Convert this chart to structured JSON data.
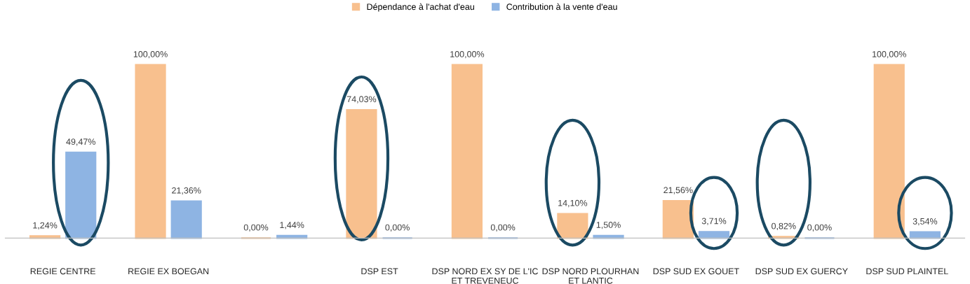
{
  "chart_data": {
    "type": "bar",
    "categories": [
      "REGIE CENTRE",
      "REGIE EX BOEGAN",
      null,
      "DSP EST",
      "DSP NORD EX SY DE L'IC\nET TREVENEUC",
      "DSP NORD PLOURHAN\nET LANTIC",
      "DSP SUD EX GOUET",
      "DSP SUD EX GUERCY",
      "DSP SUD PLAINTEL"
    ],
    "series": [
      {
        "name": "Dépendance à l'achat d'eau",
        "color": "#f8c08e",
        "values": [
          1.24,
          100,
          0,
          74.03,
          100,
          14.1,
          21.56,
          0.82,
          100
        ],
        "value_labels": [
          "1,24%",
          "100,00%",
          "0,00%",
          "74,03%",
          "100,00%",
          "14,10%",
          "21,56%",
          "0,82%",
          "100,00%"
        ]
      },
      {
        "name": "Contribution à la vente d'eau",
        "color": "#8eb4e3",
        "values": [
          49.47,
          21.36,
          1.44,
          0,
          0,
          1.5,
          3.71,
          0,
          3.54
        ],
        "value_labels": [
          "49,47%",
          "21,36%",
          "1,44%",
          "0,00%",
          "0,00%",
          "1,50%",
          "3,71%",
          "0,00%",
          "3,54%"
        ]
      }
    ],
    "legend": "top",
    "grid": false
  }
}
